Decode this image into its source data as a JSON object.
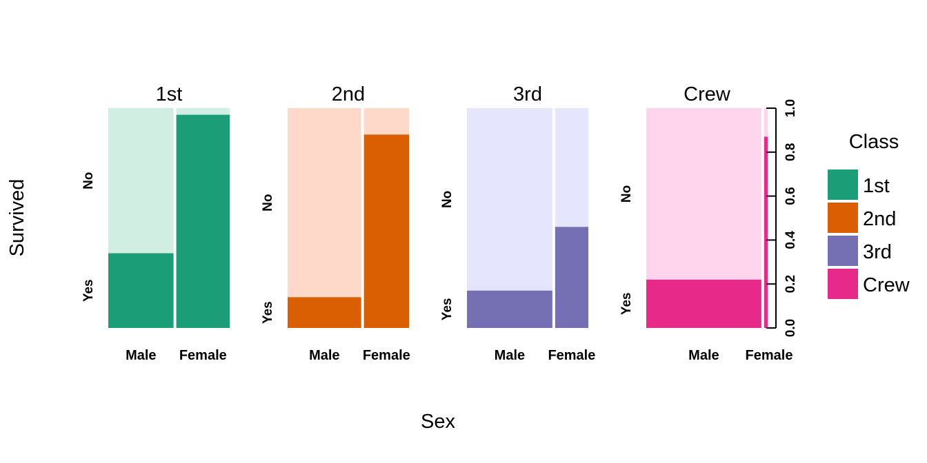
{
  "chart_data": {
    "type": "mosaic",
    "xlabel": "Sex",
    "ylabel": "Survived",
    "survived_levels": [
      "Yes",
      "No"
    ],
    "legend": {
      "title": "Class",
      "entries": [
        {
          "label": "1st",
          "color": "#1B9E77"
        },
        {
          "label": "2nd",
          "color": "#D95F02"
        },
        {
          "label": "3rd",
          "color": "#7570B3"
        },
        {
          "label": "Crew",
          "color": "#E7298A"
        }
      ]
    },
    "right_axis": {
      "ticks": [
        "0.0",
        "0.2",
        "0.4",
        "0.6",
        "0.8",
        "1.0"
      ],
      "ylim": [
        0,
        1
      ]
    },
    "panels": [
      {
        "class": "1st",
        "color": "#1B9E77",
        "light_color": "#D0EFE2",
        "sex": [
          {
            "label": "Male",
            "share": 0.55,
            "yes": 0.34
          },
          {
            "label": "Female",
            "share": 0.45,
            "yes": 0.97
          }
        ]
      },
      {
        "class": "2nd",
        "color": "#D95F02",
        "light_color": "#FED8C9",
        "sex": [
          {
            "label": "Male",
            "share": 0.62,
            "yes": 0.14
          },
          {
            "label": "Female",
            "share": 0.38,
            "yes": 0.88
          }
        ]
      },
      {
        "class": "3rd",
        "color": "#7570B3",
        "light_color": "#E6E5FE",
        "sex": [
          {
            "label": "Male",
            "share": 0.72,
            "yes": 0.17
          },
          {
            "label": "Female",
            "share": 0.28,
            "yes": 0.46
          }
        ]
      },
      {
        "class": "Crew",
        "color": "#E7298A",
        "light_color": "#FED5EC",
        "sex": [
          {
            "label": "Male",
            "share": 0.97,
            "yes": 0.22
          },
          {
            "label": "Female",
            "share": 0.03,
            "yes": 0.87
          }
        ]
      }
    ]
  }
}
